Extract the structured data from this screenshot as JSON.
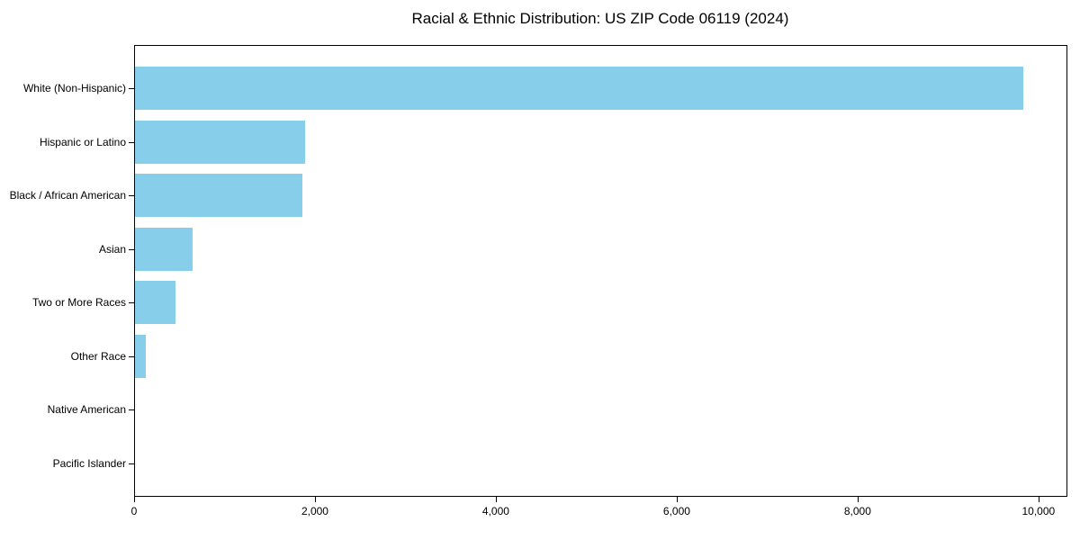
{
  "figure": {
    "background": "#ffffff",
    "frame_color": "#000000",
    "text_color": "#000000"
  },
  "chart_data": {
    "type": "bar",
    "orientation": "horizontal",
    "title": "Racial & Ethnic Distribution: US ZIP Code 06119 (2024)",
    "xlabel": "",
    "ylabel": "",
    "categories": [
      "White (Non-Hispanic)",
      "Hispanic or Latino",
      "Black / African American",
      "Asian",
      "Two or More Races",
      "Other Race",
      "Native American",
      "Pacific Islander"
    ],
    "values": [
      9820,
      1880,
      1850,
      640,
      450,
      115,
      0,
      0
    ],
    "bar_color": "#87CEEB",
    "xlim": [
      0,
      10300
    ],
    "xticks": {
      "values": [
        0,
        2000,
        4000,
        6000,
        8000,
        10000
      ],
      "labels": [
        "0",
        "2,000",
        "4,000",
        "6,000",
        "8,000",
        "10,000"
      ]
    },
    "grid": false,
    "legend": null
  }
}
